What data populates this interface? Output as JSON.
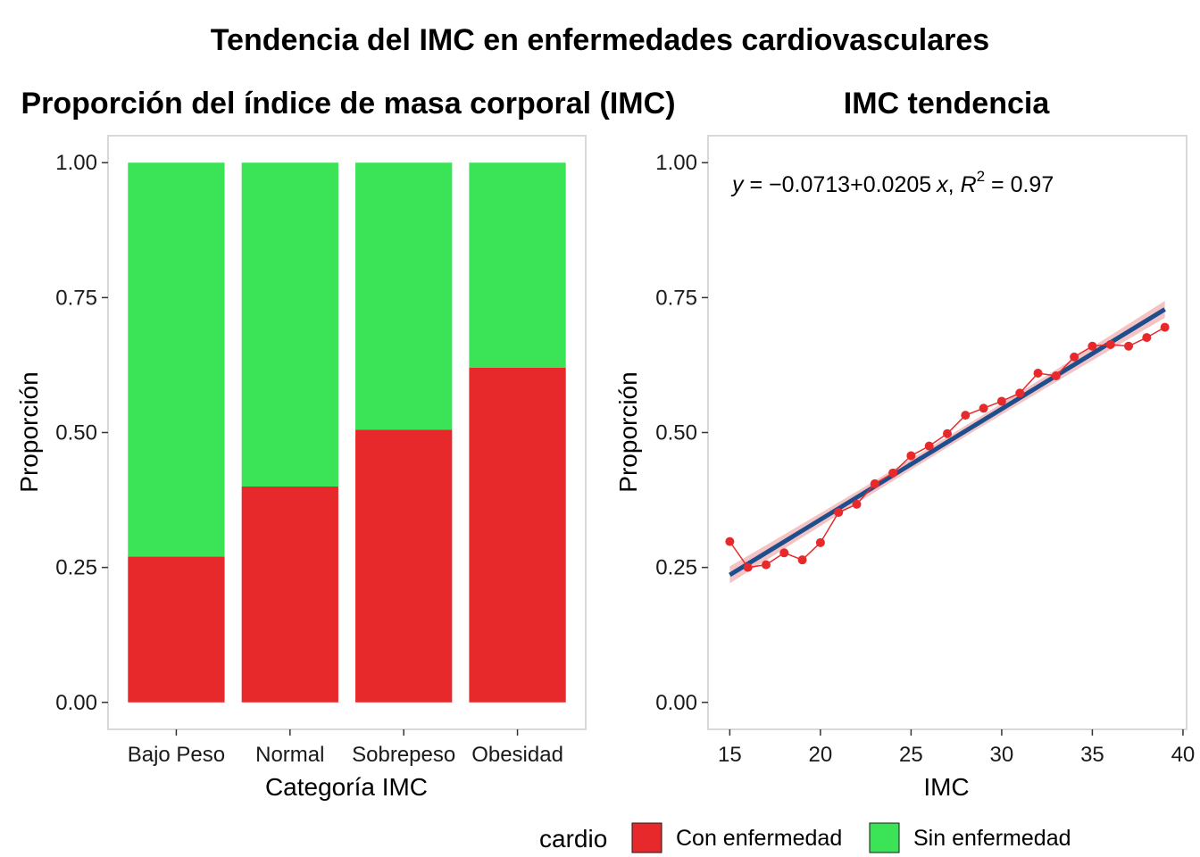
{
  "figure": {
    "title": "Tendencia del IMC en enfermedades cardiovasculares"
  },
  "colors": {
    "con_enfermedad": "#E8292B",
    "sin_enfermedad": "#3BE357",
    "fit_line": "#1F4E8C",
    "fit_band": "#F2B8BA",
    "panel_border": "#D9D9D9"
  },
  "chart_data": [
    {
      "type": "bar",
      "stacked": true,
      "title": "Proporción del índice de masa corporal (IMC)",
      "xlabel": "Categoría IMC",
      "ylabel": "Proporción",
      "categories": [
        "Bajo Peso",
        "Normal",
        "Sobrepeso",
        "Obesidad"
      ],
      "series": [
        {
          "name": "Con enfermedad",
          "values": [
            0.27,
            0.4,
            0.505,
            0.62
          ]
        },
        {
          "name": "Sin enfermedad",
          "values": [
            0.73,
            0.6,
            0.495,
            0.38
          ]
        }
      ],
      "ylim": [
        -0.05,
        1.05
      ],
      "yticks": [
        "0.00",
        "0.25",
        "0.50",
        "0.75",
        "1.00"
      ],
      "grid": false
    },
    {
      "type": "line",
      "title": "IMC tendencia",
      "xlabel": "IMC",
      "ylabel": "Proporción",
      "x": [
        15,
        16,
        17,
        18,
        19,
        20,
        21,
        22,
        23,
        24,
        25,
        26,
        27,
        28,
        29,
        30,
        31,
        32,
        33,
        34,
        35,
        36,
        37,
        38,
        39
      ],
      "y": [
        0.298,
        0.25,
        0.255,
        0.277,
        0.264,
        0.296,
        0.352,
        0.367,
        0.405,
        0.425,
        0.457,
        0.475,
        0.498,
        0.532,
        0.545,
        0.558,
        0.573,
        0.61,
        0.605,
        0.64,
        0.66,
        0.663,
        0.66,
        0.676,
        0.695
      ],
      "fit": {
        "intercept": -0.0713,
        "slope": 0.0205,
        "r2": 0.97
      },
      "equation": {
        "y": "y",
        "eq": " = ",
        "minus": "−",
        "intercept": "0.0713",
        "plus": "+",
        "slope": "0.0205",
        "x": "x",
        "comma": ", ",
        "R": "R",
        "sup": "2",
        "r2text": " = 0.97"
      },
      "xlim": [
        13.8,
        40.2
      ],
      "ylim": [
        -0.05,
        1.05
      ],
      "xticks": [
        "15",
        "20",
        "25",
        "30",
        "35",
        "40"
      ],
      "yticks": [
        "0.00",
        "0.25",
        "0.50",
        "0.75",
        "1.00"
      ],
      "grid": false
    }
  ],
  "legend": {
    "title": "cardio",
    "items": [
      "Con enfermedad",
      "Sin enfermedad"
    ],
    "placement": "bottom"
  }
}
